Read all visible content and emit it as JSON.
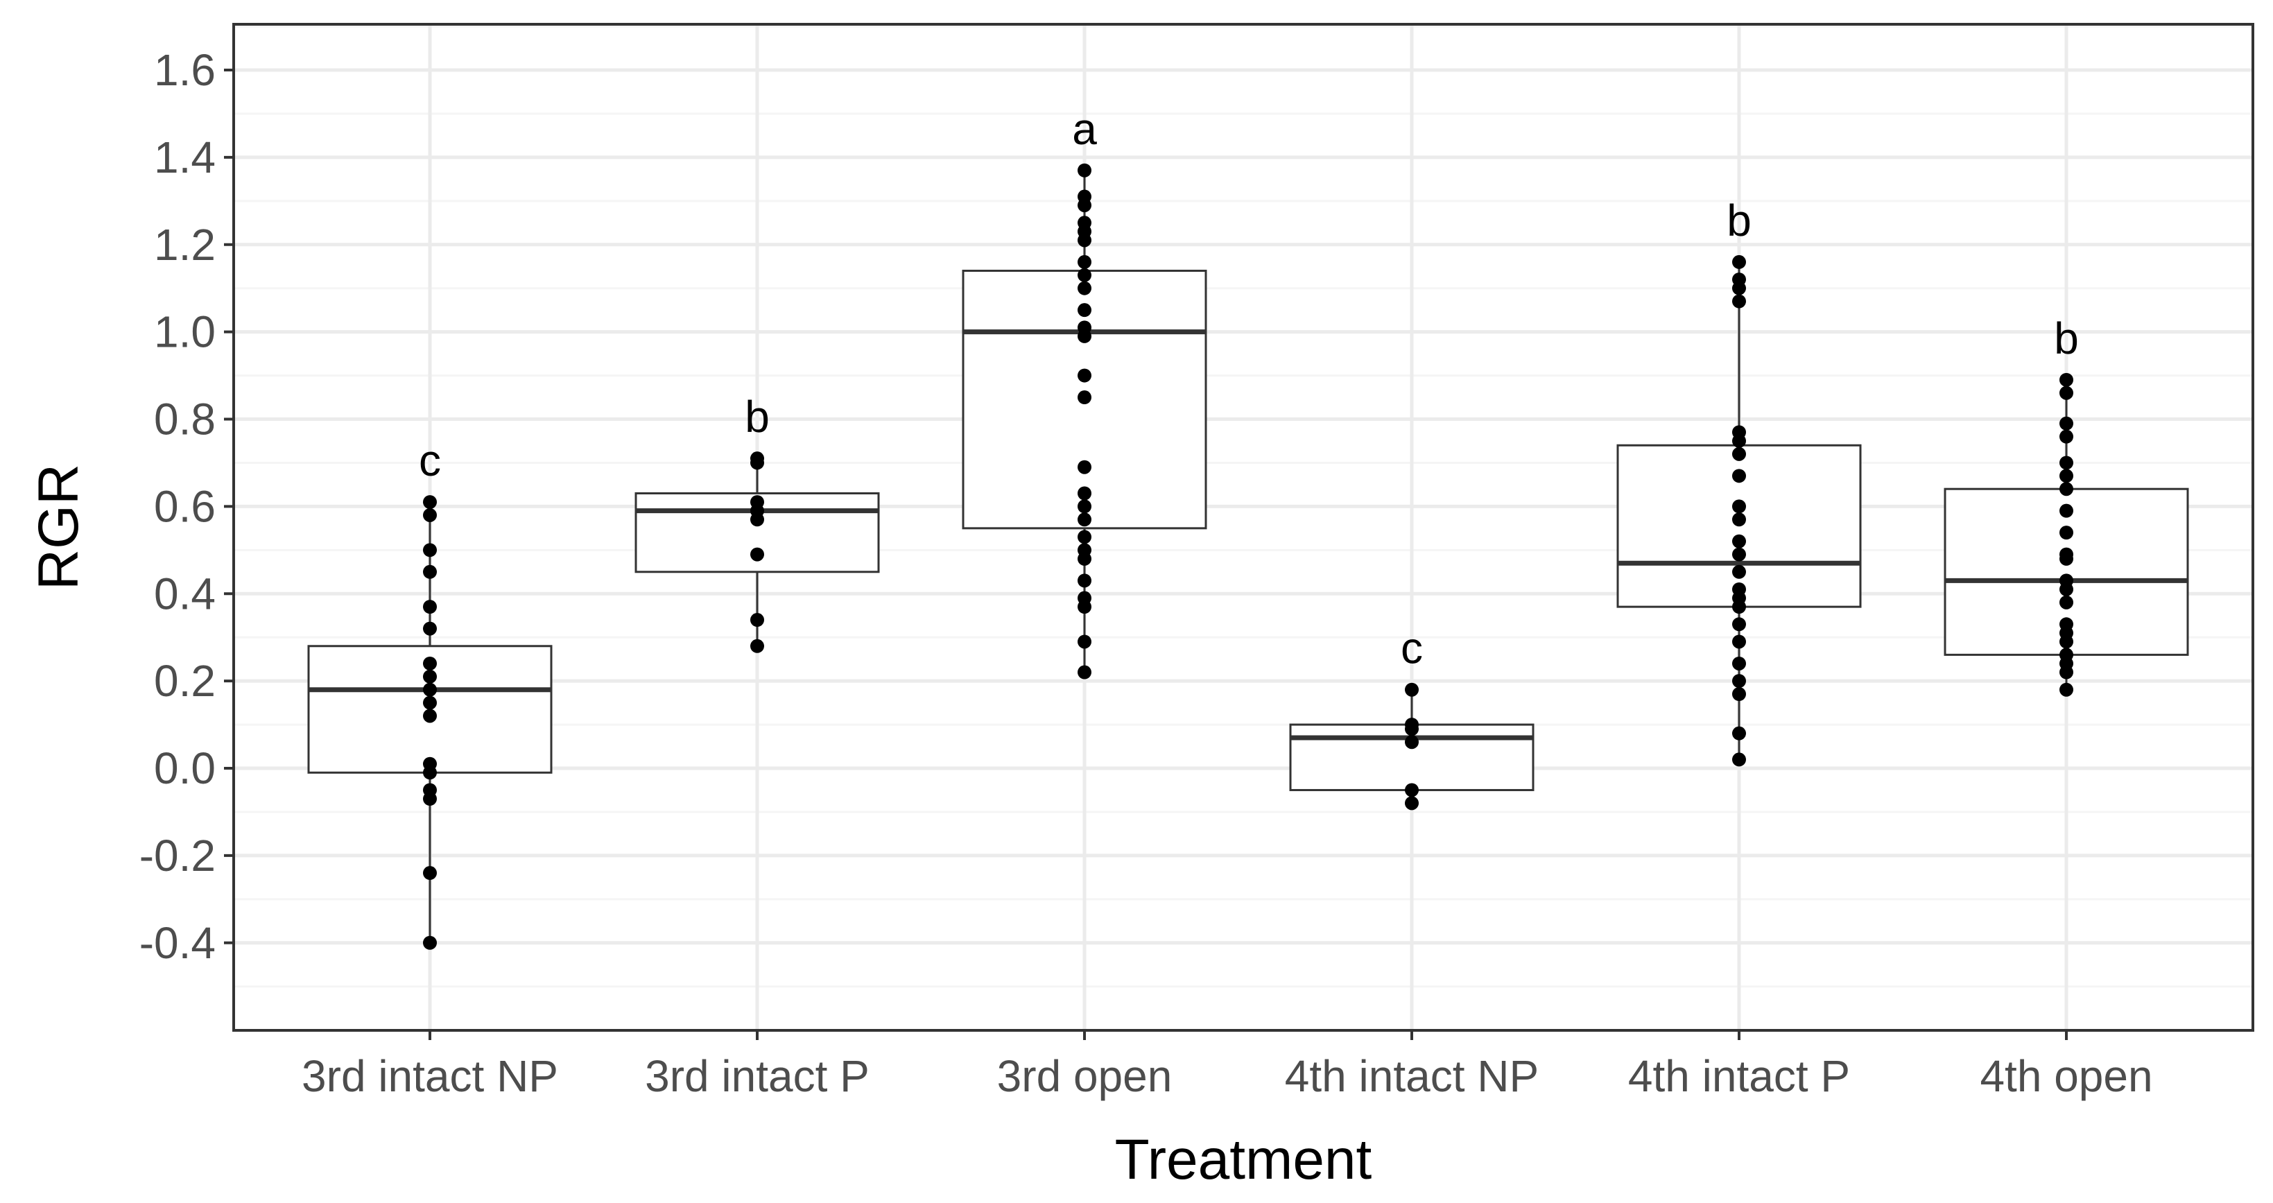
{
  "chart_data": {
    "type": "box",
    "title": "",
    "xlabel": "Treatment",
    "ylabel": "RGR",
    "ylim": [
      -0.6,
      1.7
    ],
    "yticks": [
      -0.4,
      -0.2,
      0.0,
      0.2,
      0.4,
      0.6,
      0.8,
      1.0,
      1.2,
      1.4,
      1.6
    ],
    "ytick_labels": [
      "-0.4",
      "-0.2",
      "0.0",
      "0.2",
      "0.4",
      "0.6",
      "0.8",
      "1.0",
      "1.2",
      "1.4",
      "1.6"
    ],
    "grid": true,
    "legend": "none",
    "categories": [
      "3rd intact NP",
      "3rd intact P",
      "3rd open",
      "4th intact NP",
      "4th intact P",
      "4th open"
    ],
    "boxes": [
      {
        "category": "3rd intact NP",
        "q1": -0.01,
        "median": 0.18,
        "q3": 0.28,
        "whisker_low": -0.4,
        "whisker_high": 0.61,
        "letter": "c",
        "points": [
          0.61,
          0.58,
          0.5,
          0.45,
          0.37,
          0.32,
          0.24,
          0.21,
          0.18,
          0.15,
          0.12,
          0.01,
          -0.01,
          -0.05,
          -0.07,
          -0.24,
          -0.4
        ]
      },
      {
        "category": "3rd intact P",
        "q1": 0.45,
        "median": 0.59,
        "q3": 0.63,
        "whisker_low": 0.28,
        "whisker_high": 0.71,
        "letter": "b",
        "points": [
          0.71,
          0.7,
          0.61,
          0.59,
          0.57,
          0.49,
          0.34,
          0.28
        ]
      },
      {
        "category": "3rd open",
        "q1": 0.55,
        "median": 1.0,
        "q3": 1.14,
        "whisker_low": 0.22,
        "whisker_high": 1.37,
        "letter": "a",
        "points": [
          1.37,
          1.31,
          1.29,
          1.25,
          1.23,
          1.21,
          1.16,
          1.13,
          1.1,
          1.05,
          1.01,
          0.99,
          0.9,
          0.85,
          0.69,
          0.63,
          0.6,
          0.57,
          0.53,
          0.5,
          0.48,
          0.43,
          0.39,
          0.37,
          0.29,
          0.22
        ]
      },
      {
        "category": "4th intact NP",
        "q1": -0.05,
        "median": 0.07,
        "q3": 0.1,
        "whisker_low": -0.08,
        "whisker_high": 0.18,
        "letter": "c",
        "points": [
          0.18,
          0.1,
          0.09,
          0.06,
          -0.05,
          -0.08
        ]
      },
      {
        "category": "4th intact P",
        "q1": 0.37,
        "median": 0.47,
        "q3": 0.74,
        "whisker_low": 0.02,
        "whisker_high": 1.16,
        "letter": "b",
        "points": [
          1.16,
          1.12,
          1.1,
          1.07,
          0.77,
          0.75,
          0.72,
          0.67,
          0.6,
          0.57,
          0.52,
          0.49,
          0.45,
          0.41,
          0.39,
          0.37,
          0.33,
          0.29,
          0.24,
          0.2,
          0.17,
          0.08,
          0.02
        ]
      },
      {
        "category": "4th open",
        "q1": 0.26,
        "median": 0.43,
        "q3": 0.64,
        "whisker_low": 0.18,
        "whisker_high": 0.89,
        "letter": "b",
        "points": [
          0.89,
          0.86,
          0.79,
          0.76,
          0.7,
          0.67,
          0.64,
          0.59,
          0.54,
          0.49,
          0.48,
          0.43,
          0.41,
          0.38,
          0.33,
          0.31,
          0.29,
          0.26,
          0.24,
          0.22,
          0.18
        ]
      }
    ]
  },
  "colors": {
    "panel_border": "#333333",
    "grid_major": "#ebebeb",
    "grid_minor": "#f5f5f5",
    "box_stroke": "#333333",
    "point": "#000000",
    "tick_text": "#4d4d4d"
  }
}
